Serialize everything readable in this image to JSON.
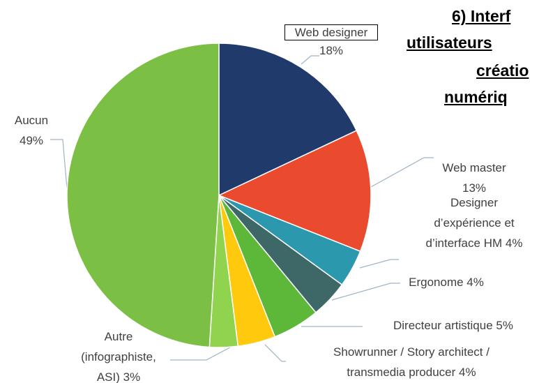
{
  "chart_data": {
    "type": "pie",
    "title_lines": [
      "6) Interf",
      "utilisateurs",
      "créatio",
      "numériq"
    ],
    "categories": [
      "Web designer",
      "Web master",
      "Designer d’expérience et d’interface HM",
      "Ergonome",
      "Directeur artistique",
      "Showrunner / Story architect / transmedia producer",
      "Autre (infographiste, ASI)",
      "Aucun"
    ],
    "values": [
      18,
      13,
      4,
      4,
      5,
      4,
      3,
      49
    ],
    "value_labels": [
      "18%",
      "13%",
      "4%",
      "4%",
      "5%",
      "4%",
      "3%",
      "49%"
    ],
    "colors": [
      "#1f3a6b",
      "#ea4a2e",
      "#2b98ad",
      "#3e6767",
      "#5db83a",
      "#ffc90e",
      "#8fd34f",
      "#7cbf45"
    ]
  }
}
